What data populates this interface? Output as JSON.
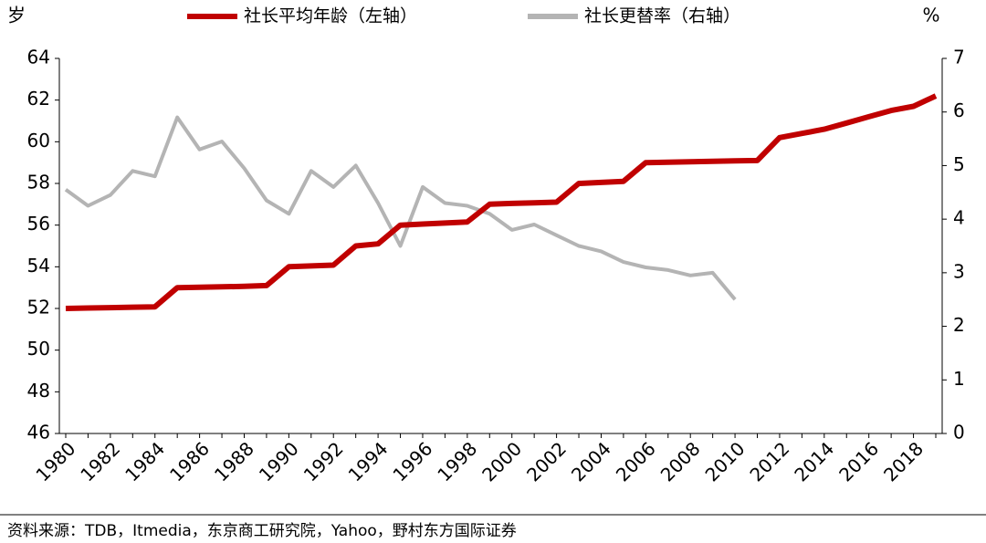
{
  "chart_data": {
    "type": "line",
    "y_label": "岁",
    "y2_label": "%",
    "categories": [
      "1980",
      null,
      "1982",
      null,
      "1984",
      null,
      "1986",
      null,
      "1988",
      null,
      "1990",
      null,
      "1992",
      null,
      "1994",
      null,
      "1996",
      null,
      "1998",
      null,
      "2000",
      null,
      "2002",
      null,
      "2004",
      null,
      "2006",
      null,
      "2008",
      null,
      "2010",
      null,
      "2012",
      null,
      "2014",
      null,
      "2016",
      null,
      "2018",
      null
    ],
    "series": [
      {
        "name": "社长平均年龄（左轴）",
        "color": "#c00000",
        "axis": "y",
        "values": [
          52.0,
          52.02,
          52.04,
          52.06,
          52.08,
          53.0,
          53.02,
          53.04,
          53.06,
          53.1,
          54.0,
          54.04,
          54.08,
          55.0,
          55.1,
          56.0,
          56.05,
          56.1,
          56.15,
          57.0,
          57.04,
          57.07,
          57.1,
          58.0,
          58.05,
          58.1,
          59.0,
          59.02,
          59.04,
          59.06,
          59.08,
          59.1,
          60.2,
          60.4,
          60.6,
          60.9,
          61.2,
          61.5,
          61.7,
          62.2
        ]
      },
      {
        "name": "社长更替率（右轴）",
        "color": "#b4b4b4",
        "axis": "y2",
        "values": [
          4.55,
          4.25,
          4.45,
          4.9,
          4.8,
          5.9,
          5.3,
          5.45,
          4.95,
          4.35,
          4.1,
          4.9,
          4.6,
          5.0,
          4.3,
          3.5,
          4.6,
          4.3,
          4.25,
          4.1,
          3.8,
          3.9,
          3.7,
          3.5,
          3.4,
          3.2,
          3.1,
          3.05,
          2.95,
          3.0,
          2.5,
          null,
          null,
          null,
          null,
          null,
          null,
          null,
          null,
          null
        ]
      }
    ],
    "ylim": [
      46,
      64
    ],
    "yticks": [
      46,
      48,
      50,
      52,
      54,
      56,
      58,
      60,
      62,
      64
    ],
    "y2lim": [
      0,
      7
    ],
    "y2ticks": [
      0,
      1,
      2,
      3,
      4,
      5,
      6,
      7
    ],
    "legend": "top",
    "source": "资料来源：TDB，Itmedia，东京商工研究院，Yahoo，野村东方国际证券"
  }
}
